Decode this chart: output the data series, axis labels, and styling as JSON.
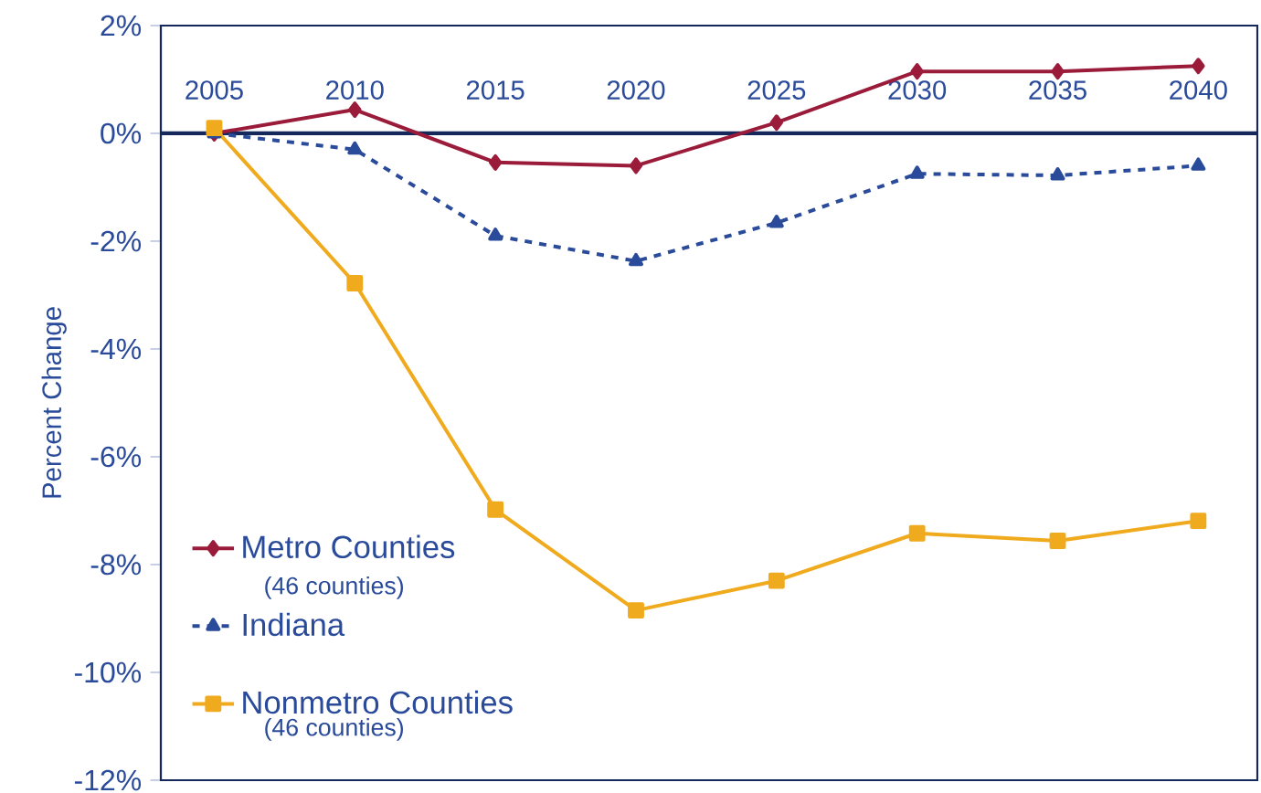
{
  "chart_data": {
    "type": "line",
    "ylabel": "Percent Change",
    "x": [
      2005,
      2010,
      2015,
      2020,
      2025,
      2030,
      2035,
      2040
    ],
    "xlim": [
      2003.1,
      2042.1
    ],
    "xticks": [
      2005,
      2010,
      2015,
      2020,
      2025,
      2030,
      2035,
      2040
    ],
    "ylim": [
      -12,
      2
    ],
    "yticks": [
      {
        "value": 2,
        "label": "2%"
      },
      {
        "value": 0,
        "label": "0%"
      },
      {
        "value": -2,
        "label": "-2%"
      },
      {
        "value": -4,
        "label": "-4%"
      },
      {
        "value": -6,
        "label": "-6%"
      },
      {
        "value": -8,
        "label": "-8%"
      },
      {
        "value": -10,
        "label": "-10%"
      },
      {
        "value": -12,
        "label": "-12%"
      }
    ],
    "annotations": [
      "(46 counties)",
      "(46 counties)"
    ],
    "legend": "bottom left",
    "grid": false,
    "series": [
      {
        "name": "Metro Counties",
        "color": "#9b1b3a",
        "marker": "diamond",
        "line_style": "solid",
        "values": [
          0,
          0.44,
          -0.54,
          -0.6,
          0.2,
          1.15,
          1.15,
          1.25
        ]
      },
      {
        "name": "Indiana",
        "color": "#2a4a9a",
        "marker": "triangle",
        "line_style": "dashed",
        "values": [
          0,
          -0.3,
          -1.9,
          -2.37,
          -1.66,
          -0.75,
          -0.78,
          -0.6
        ]
      },
      {
        "name": "Nonmetro Counties",
        "color": "#f0aa1e",
        "marker": "square",
        "line_style": "solid",
        "values": [
          0.1,
          -2.78,
          -6.98,
          -8.85,
          -8.3,
          -7.42,
          -7.56,
          -7.19
        ]
      }
    ]
  }
}
